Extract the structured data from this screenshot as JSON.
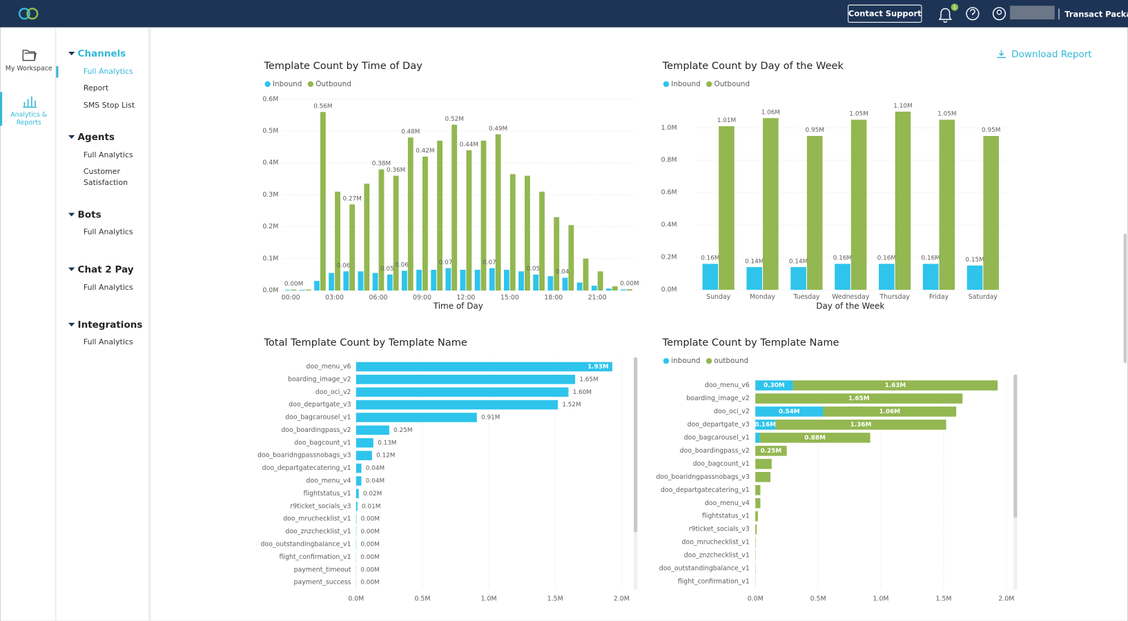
{
  "header": {
    "contact": "Contact Support",
    "badge": "1",
    "account": "Transact Package"
  },
  "sidebar": {
    "workspace": "My Workspace",
    "analytics": "Analytics & Reports"
  },
  "nav": [
    {
      "title": "Channels",
      "items": [
        "Full Analytics",
        "Report",
        "SMS Stop List"
      ]
    },
    {
      "title": "Agents",
      "items": [
        "Full Analytics",
        "Customer Satisfaction"
      ]
    },
    {
      "title": "Bots",
      "items": [
        "Full Analytics"
      ]
    },
    {
      "title": "Chat 2 Pay",
      "items": [
        "Full Analytics"
      ]
    },
    {
      "title": "Integrations",
      "items": [
        "Full Analytics"
      ]
    }
  ],
  "download": "Download Report",
  "chart_data": [
    {
      "type": "bar",
      "title": "Template Count by Time of Day",
      "x_label": "Time of Day",
      "categories": [
        "00:00",
        null,
        null,
        "03:00",
        null,
        null,
        "06:00",
        null,
        null,
        "09:00",
        null,
        null,
        "12:00",
        null,
        null,
        "15:00",
        null,
        null,
        "18:00",
        null,
        null,
        "21:00",
        null,
        null
      ],
      "series": [
        {
          "name": "Inbound",
          "color": "#2ec4ec",
          "values": [
            0.002,
            0.002,
            0.03,
            0.055,
            0.06,
            0.06,
            0.055,
            0.05,
            0.062,
            0.065,
            0.065,
            0.07,
            0.065,
            0.065,
            0.07,
            0.065,
            0.06,
            0.05,
            0.045,
            0.04,
            0.025,
            0.015,
            0.006,
            0.003
          ],
          "value_labels": [
            null,
            null,
            null,
            null,
            "0.06M",
            null,
            null,
            "0.05M",
            "0.06M",
            null,
            null,
            "0.07M",
            null,
            null,
            "0.07M",
            null,
            null,
            "0.05M",
            null,
            "0.04M",
            null,
            null,
            null,
            null
          ]
        },
        {
          "name": "Outbound",
          "color": "#93b751",
          "values": [
            0.003,
            0.003,
            0.56,
            0.31,
            0.27,
            0.335,
            0.38,
            0.36,
            0.48,
            0.42,
            0.47,
            0.52,
            0.44,
            0.47,
            0.49,
            0.365,
            0.36,
            0.31,
            0.23,
            0.205,
            0.1,
            0.06,
            0.013,
            0.004
          ],
          "value_labels": [
            "0.00M",
            null,
            "0.56M",
            null,
            "0.27M",
            null,
            "0.38M",
            "0.36M",
            "0.48M",
            "0.42M",
            null,
            "0.52M",
            "0.44M",
            null,
            "0.49M",
            null,
            null,
            null,
            null,
            null,
            null,
            null,
            null,
            "0.00M"
          ]
        }
      ],
      "ylim": [
        0,
        0.6
      ],
      "yticks": [
        {
          "value": 0,
          "label": "0.0M"
        },
        {
          "value": 0.1,
          "label": "0.1M"
        },
        {
          "value": 0.2,
          "label": "0.2M"
        },
        {
          "value": 0.3,
          "label": "0.3M"
        },
        {
          "value": 0.4,
          "label": "0.4M"
        },
        {
          "value": 0.5,
          "label": "0.5M"
        },
        {
          "value": 0.6,
          "label": "0.6M"
        }
      ],
      "grid": true
    },
    {
      "type": "bar",
      "title": "Template Count by Day of the Week",
      "x_label": "Day of the Week",
      "categories": [
        "Sunday",
        "Monday",
        "Tuesday",
        "Wednesday",
        "Thursday",
        "Friday",
        "Saturday"
      ],
      "series": [
        {
          "name": "Inbound",
          "color": "#2ec4ec",
          "values": [
            0.16,
            0.14,
            0.14,
            0.16,
            0.16,
            0.16,
            0.15
          ],
          "value_labels": [
            "0.16M",
            "0.14M",
            "0.14M",
            "0.16M",
            "0.16M",
            "0.16M",
            "0.15M"
          ]
        },
        {
          "name": "Outbound",
          "color": "#93b751",
          "values": [
            1.01,
            1.06,
            0.95,
            1.05,
            1.1,
            1.05,
            0.95
          ],
          "value_labels": [
            "1.01M",
            "1.06M",
            "0.95M",
            "1.05M",
            "1.10M",
            "1.05M",
            "0.95M"
          ]
        }
      ],
      "ylim": [
        0,
        1.15
      ],
      "yticks": [
        {
          "value": 0,
          "label": "0.0M"
        },
        {
          "value": 0.2,
          "label": "0.2M"
        },
        {
          "value": 0.4,
          "label": "0.4M"
        },
        {
          "value": 0.6,
          "label": "0.6M"
        },
        {
          "value": 0.8,
          "label": "0.8M"
        },
        {
          "value": 1,
          "label": "1.0M"
        }
      ],
      "grid": true
    },
    {
      "type": "barh",
      "title": "Total Template Count by Template Name",
      "categories": [
        "doo_menu_v6",
        "boarding_image_v2",
        "doo_oci_v2",
        "doo_departgate_v3",
        "doo_bagcarousel_v1",
        "doo_boardingpass_v2",
        "doo_bagcount_v1",
        "doo_boaridngpassnobags_v3",
        "doo_departgatecatering_v1",
        "doo_menu_v4",
        "flightstatus_v1",
        "r9ticket_socials_v3",
        "doo_mruchecklist_v1",
        "doo_znzchecklist_v1",
        "doo_outstandingbalance_v1",
        "flight_confirmation_v1",
        "payment_timeout",
        "payment_success"
      ],
      "values": [
        1.93,
        1.65,
        1.6,
        1.52,
        0.91,
        0.25,
        0.13,
        0.12,
        0.04,
        0.04,
        0.02,
        0.01,
        0.003,
        0.002,
        0.002,
        0.001,
        0.001,
        0.001
      ],
      "value_labels": [
        "1.93M",
        "1.65M",
        "1.60M",
        "1.52M",
        "0.91M",
        "0.25M",
        "0.13M",
        "0.12M",
        "0.04M",
        "0.04M",
        "0.02M",
        "0.01M",
        "0.00M",
        "0.00M",
        "0.00M",
        "0.00M",
        "0.00M",
        "0.00M"
      ],
      "color": "#2ec4ec",
      "xlim": [
        0,
        2
      ],
      "xticks": [
        {
          "value": 0,
          "label": "0.0M"
        },
        {
          "value": 0.5,
          "label": "0.5M"
        },
        {
          "value": 1,
          "label": "1.0M"
        },
        {
          "value": 1.5,
          "label": "1.5M"
        },
        {
          "value": 2,
          "label": "2.0M"
        }
      ],
      "grid": true
    },
    {
      "type": "stackedbarh",
      "title": "Template Count by Template Name",
      "categories": [
        "doo_menu_v6",
        "boarding_image_v2",
        "doo_oci_v2",
        "doo_departgate_v3",
        "doo_bagcarousel_v1",
        "doo_boardingpass_v2",
        "doo_bagcount_v1",
        "doo_boaridngpassnobags_v3",
        "doo_departgatecatering_v1",
        "doo_menu_v4",
        "flightstatus_v1",
        "r9ticket_socials_v3",
        "doo_mruchecklist_v1",
        "doo_znzchecklist_v1",
        "doo_outstandingbalance_v1",
        "flight_confirmation_v1"
      ],
      "series": [
        {
          "name": "inbound",
          "color": "#2ec4ec",
          "values": [
            0.3,
            0,
            0.54,
            0.16,
            0.035,
            0,
            0,
            0,
            0,
            0,
            0,
            0,
            0,
            0,
            0,
            0
          ],
          "value_labels": [
            "0.30M",
            null,
            "0.54M",
            "0.16M",
            null,
            null,
            null,
            null,
            null,
            null,
            null,
            null,
            null,
            null,
            null,
            null
          ]
        },
        {
          "name": "outbound",
          "color": "#93b751",
          "values": [
            1.63,
            1.65,
            1.06,
            1.36,
            0.88,
            0.25,
            0.13,
            0.12,
            0.04,
            0.04,
            0.02,
            0.01,
            0.003,
            0.002,
            0.002,
            0.001
          ],
          "value_labels": [
            "1.63M",
            "1.65M",
            "1.06M",
            "1.36M",
            "0.88M",
            "0.25M",
            null,
            null,
            null,
            null,
            null,
            null,
            null,
            null,
            null,
            null
          ]
        }
      ],
      "xlim": [
        0,
        2
      ],
      "xticks": [
        {
          "value": 0,
          "label": "0.0M"
        },
        {
          "value": 0.5,
          "label": "0.5M"
        },
        {
          "value": 1,
          "label": "1.0M"
        },
        {
          "value": 1.5,
          "label": "1.5M"
        },
        {
          "value": 2,
          "label": "2.0M"
        }
      ],
      "grid": true
    }
  ]
}
